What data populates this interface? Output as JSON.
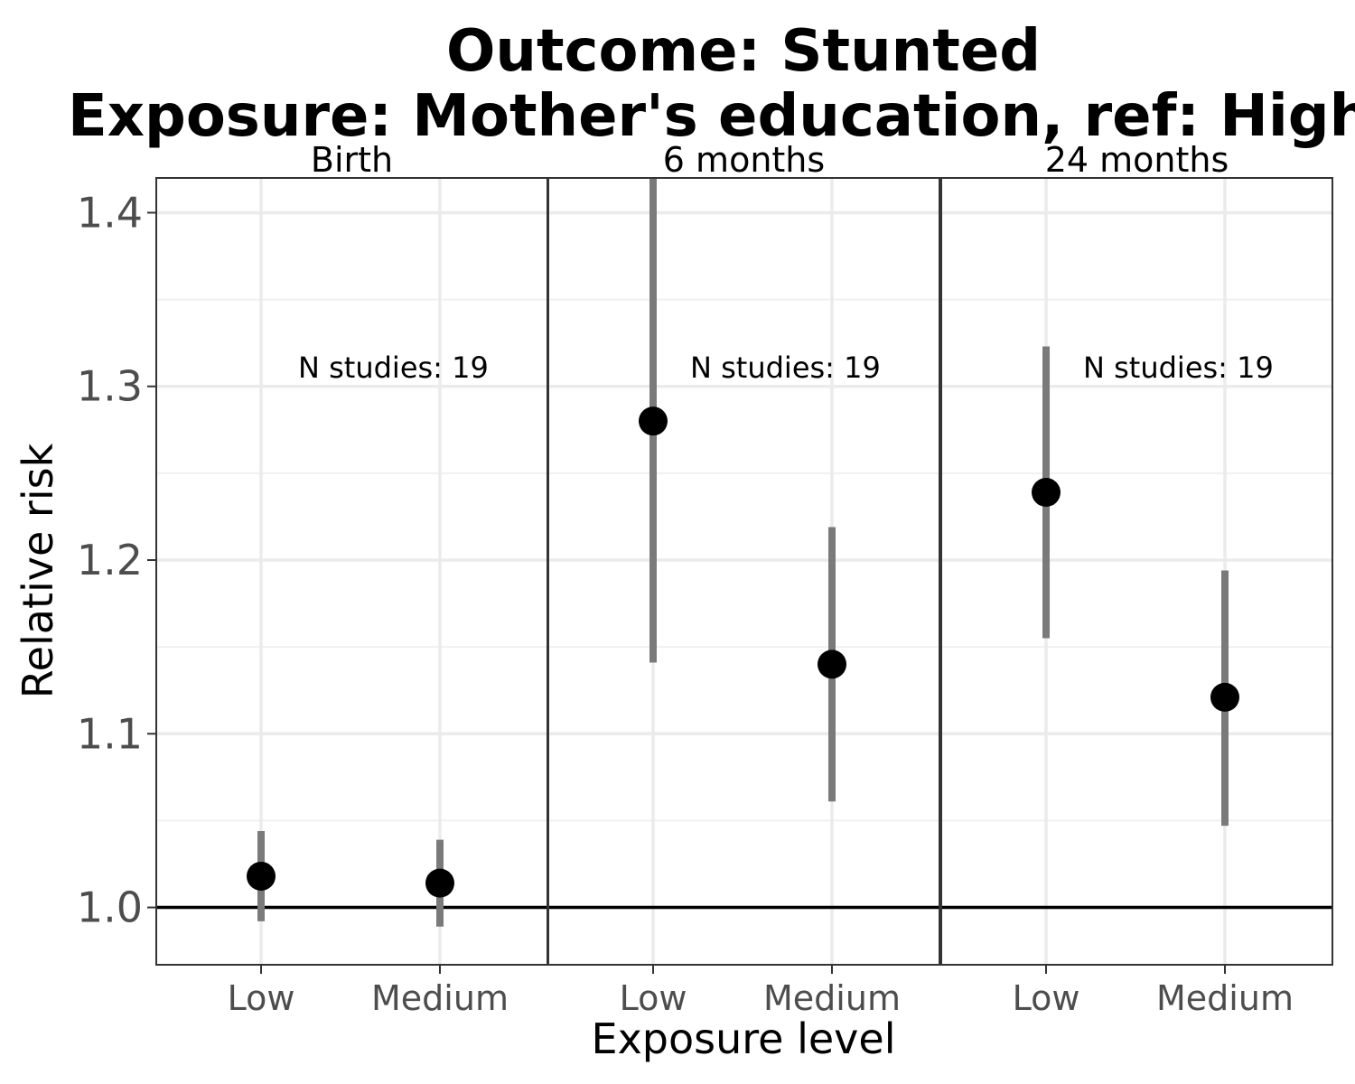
{
  "chart_data": {
    "type": "scatter",
    "title_line1": "Outcome: Stunted",
    "title_line2": "Exposure: Mother's education, ref: High",
    "xlabel": "Exposure level",
    "ylabel": "Relative risk",
    "categories": [
      "Low",
      "Medium"
    ],
    "y_ticks": [
      1.0,
      1.1,
      1.2,
      1.3,
      1.4
    ],
    "y_tick_labels": [
      "1.0",
      "1.1",
      "1.2",
      "1.3",
      "1.4"
    ],
    "ylim": [
      0.967,
      1.42
    ],
    "reference_line": 1.0,
    "grid": true,
    "panels": [
      {
        "label": "Birth",
        "annotation": "N studies: 19",
        "points": [
          {
            "category": "Low",
            "rr": 1.018,
            "lower": 0.992,
            "upper": 1.044
          },
          {
            "category": "Medium",
            "rr": 1.014,
            "lower": 0.989,
            "upper": 1.039
          }
        ]
      },
      {
        "label": "6 months",
        "annotation": "N studies: 19",
        "points": [
          {
            "category": "Low",
            "rr": 1.28,
            "lower": 1.141,
            "upper": 1.42
          },
          {
            "category": "Medium",
            "rr": 1.14,
            "lower": 1.061,
            "upper": 1.219
          }
        ]
      },
      {
        "label": "24 months",
        "annotation": "N studies: 19",
        "points": [
          {
            "category": "Low",
            "rr": 1.239,
            "lower": 1.155,
            "upper": 1.323
          },
          {
            "category": "Medium",
            "rr": 1.121,
            "lower": 1.047,
            "upper": 1.194
          }
        ]
      }
    ]
  }
}
